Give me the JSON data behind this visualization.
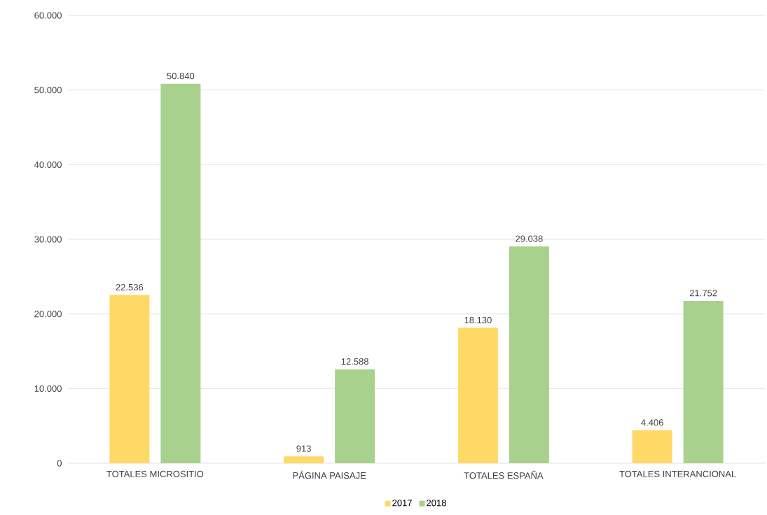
{
  "chart_data": {
    "type": "bar",
    "categories": [
      "TOTALES MICROSITIO",
      "PÁGINA PAISAJE",
      "TOTALES ESPAÑA",
      "TOTALES INTERANCIONAL"
    ],
    "series": [
      {
        "name": "2017",
        "color": "#ffd966",
        "values": [
          22536,
          913,
          18130,
          4406
        ],
        "value_labels": [
          "22.536",
          "913",
          "18.130",
          "4.406"
        ]
      },
      {
        "name": "2018",
        "color": "#a9d18e",
        "values": [
          50840,
          12588,
          29038,
          21752
        ],
        "value_labels": [
          "50.840",
          "12.588",
          "29.038",
          "21.752"
        ]
      }
    ],
    "ylim": [
      0,
      60000
    ],
    "yticks": [
      {
        "value": 0,
        "label": "0"
      },
      {
        "value": 10000,
        "label": "10.000"
      },
      {
        "value": 20000,
        "label": "20.000"
      },
      {
        "value": 30000,
        "label": "30.000"
      },
      {
        "value": 40000,
        "label": "40.000"
      },
      {
        "value": 50000,
        "label": "50.000"
      },
      {
        "value": 60000,
        "label": "60.000"
      }
    ],
    "grid": "y",
    "legend": "bottom"
  }
}
